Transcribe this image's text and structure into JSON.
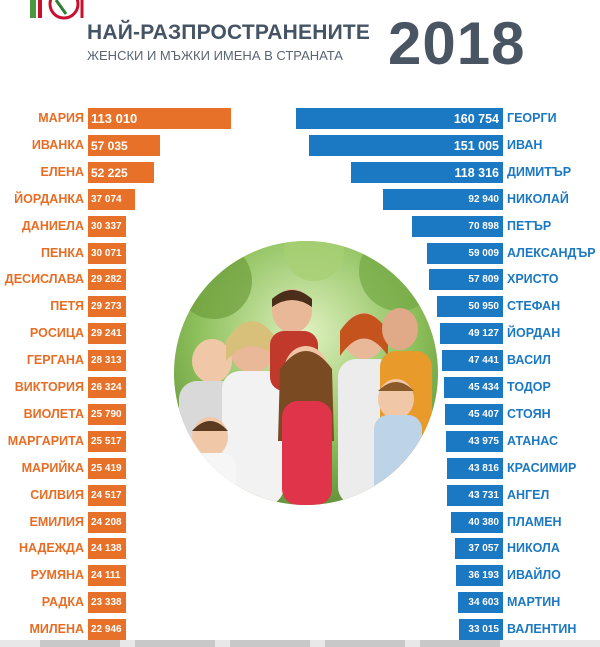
{
  "header": {
    "title_line1": "НАЙ-РАЗПРОСТРАНЕНИТЕ",
    "title_line2": "ЖЕНСКИ И МЪЖКИ ИМЕНА В СТРАНАТА",
    "year": "2018"
  },
  "colors": {
    "female": "#e8712a",
    "male": "#1b78c2",
    "title": "#455464"
  },
  "chart_data": {
    "type": "bar",
    "female": {
      "names": [
        "МАРИЯ",
        "ИВАНКА",
        "ЕЛЕНА",
        "ЙОРДАНКА",
        "ДАНИЕЛА",
        "ПЕНКА",
        "ДЕСИСЛАВА",
        "ПЕТЯ",
        "РОСИЦА",
        "ГЕРГАНА",
        "ВИКТОРИЯ",
        "ВИОЛЕТА",
        "МАРГАРИТА",
        "МАРИЙКА",
        "СИЛВИЯ",
        "ЕМИЛИЯ",
        "НАДЕЖДА",
        "РУМЯНА",
        "РАДКА",
        "МИЛЕНА"
      ],
      "values": [
        113010,
        57035,
        52225,
        37074,
        30337,
        30071,
        29282,
        29273,
        29241,
        28313,
        26324,
        25790,
        25517,
        25419,
        24517,
        24208,
        24138,
        24111,
        23338,
        22946
      ],
      "labels": [
        "113 010",
        "57 035",
        "52 225",
        "37 074",
        "30 337",
        "30 071",
        "29 282",
        "29 273",
        "29 241",
        "28 313",
        "26 324",
        "25 790",
        "25 517",
        "25 419",
        "24 517",
        "24 208",
        "24 138",
        "24 111",
        "23 338",
        "22 946"
      ]
    },
    "male": {
      "names": [
        "ГЕОРГИ",
        "ИВАН",
        "ДИМИТЪР",
        "НИКОЛАЙ",
        "ПЕТЪР",
        "АЛЕКСАНДЪР",
        "ХРИСТО",
        "СТЕФАН",
        "ЙОРДАН",
        "ВАСИЛ",
        "ТОДОР",
        "СТОЯН",
        "АТАНАС",
        "КРАСИМИР",
        "АНГЕЛ",
        "ПЛАМЕН",
        "НИКОЛА",
        "ИВАЙЛО",
        "МАРТИН",
        "ВАЛЕНТИН"
      ],
      "values": [
        160754,
        151005,
        118316,
        92940,
        70898,
        59009,
        57809,
        50950,
        49127,
        47441,
        45434,
        45407,
        43975,
        43816,
        43731,
        40380,
        37057,
        36193,
        34603,
        33015
      ],
      "labels": [
        "160 754",
        "151 005",
        "118 316",
        "92 940",
        "70 898",
        "59 009",
        "57 809",
        "50 950",
        "49 127",
        "47 441",
        "45 434",
        "45 407",
        "43 975",
        "43 816",
        "43 731",
        "40 380",
        "37 057",
        "36 193",
        "34 603",
        "33 015"
      ]
    }
  }
}
